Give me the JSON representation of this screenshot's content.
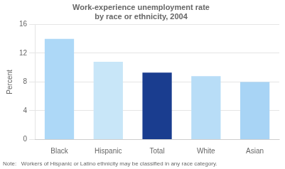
{
  "chart_data": {
    "type": "bar",
    "title": "Work-experience unemployment rate\nby race or ethnicity, 2004",
    "categories": [
      "Black",
      "Hispanic",
      "Total",
      "White",
      "Asian"
    ],
    "values": [
      14.0,
      10.8,
      9.3,
      8.8,
      8.0
    ],
    "colors": [
      "#add8f7",
      "#c8e6f8",
      "#1a3d8f",
      "#b8ddf7",
      "#a8d4f5"
    ],
    "ylabel": "Percent",
    "ylim": [
      0,
      16
    ],
    "yticks": [
      0,
      4,
      8,
      12,
      16
    ],
    "grid": true,
    "annotation": "Note:   Workers of Hispanic or Latino ethnicity may be classified in any race category."
  }
}
